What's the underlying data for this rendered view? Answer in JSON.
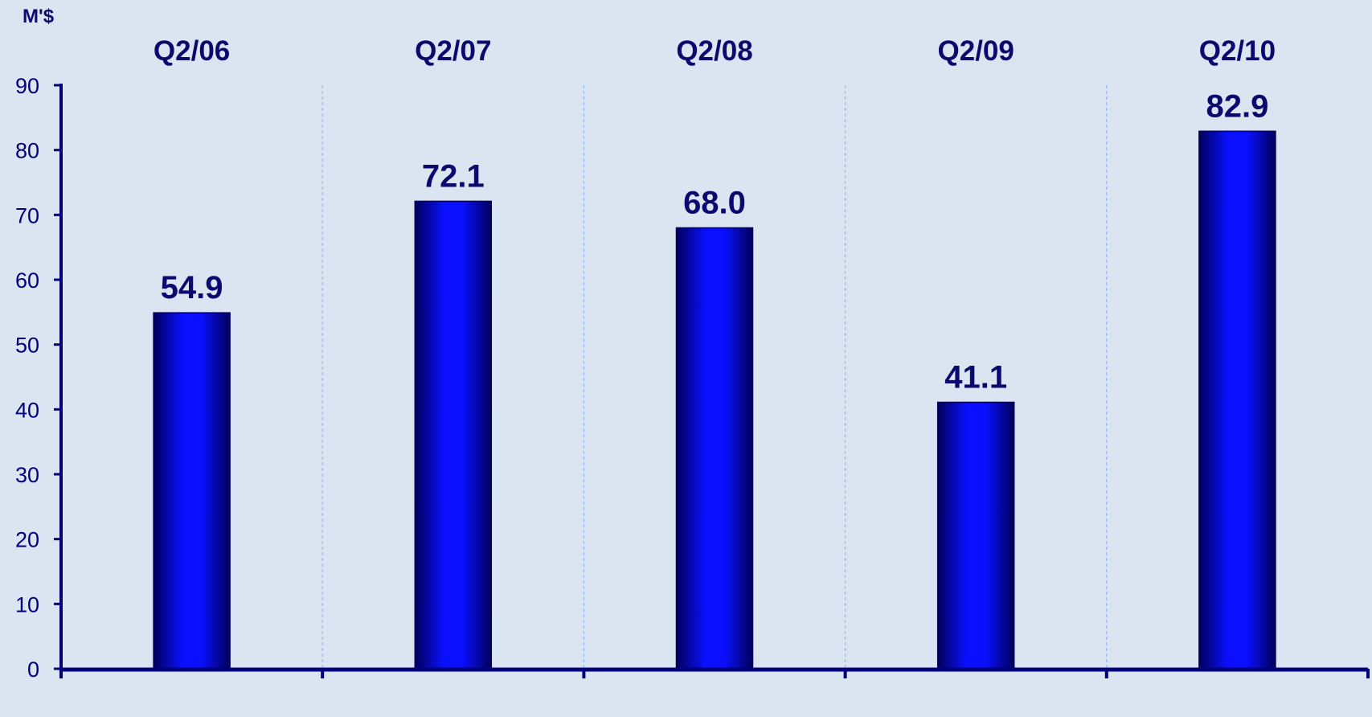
{
  "chart_data": {
    "type": "bar",
    "categories": [
      "Q2/06",
      "Q2/07",
      "Q2/08",
      "Q2/09",
      "Q2/10"
    ],
    "values": [
      54.9,
      72.1,
      68.0,
      41.1,
      82.9
    ],
    "value_labels": [
      "54.9",
      "72.1",
      "68.0",
      "41.1",
      "82.9"
    ],
    "unit_label": "M'$",
    "yticks": [
      "0",
      "10",
      "20",
      "30",
      "40",
      "50",
      "60",
      "70",
      "80",
      "90"
    ],
    "ylim": [
      0,
      90
    ],
    "grid": "vertical dashed separators between categories",
    "colors": {
      "background": "#dbe5f1",
      "axis": "#00007a",
      "bar_edge": "#00005a",
      "bar_center": "#0a10ff",
      "grid": "#8fb8ff",
      "text": "#0a0a6e"
    }
  }
}
